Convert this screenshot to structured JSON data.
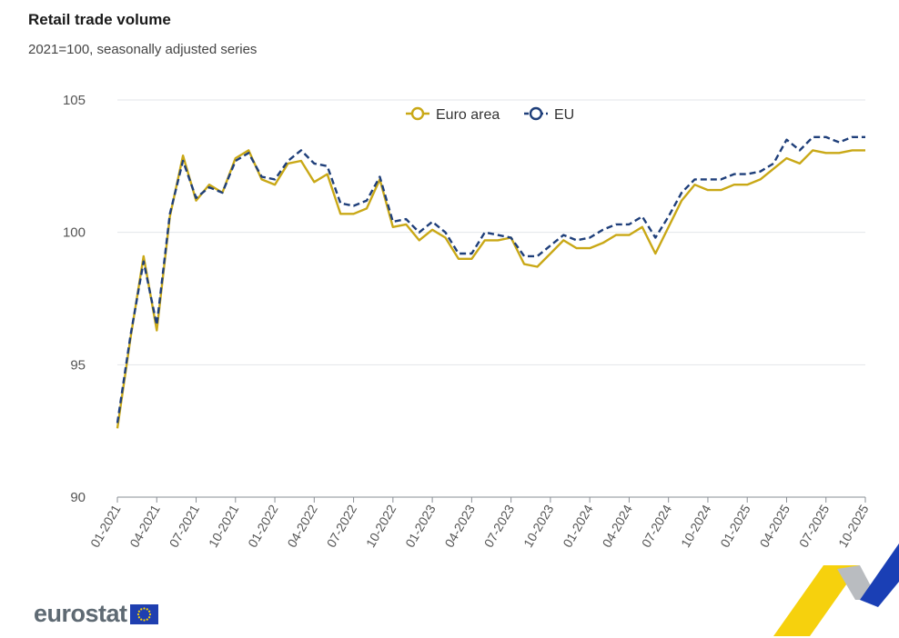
{
  "header": {
    "title": "Retail trade volume",
    "subtitle": "2021=100, seasonally adjusted series"
  },
  "branding": {
    "logo_text": "eurostat"
  },
  "chart_data": {
    "type": "line",
    "title": "Retail trade volume",
    "subtitle": "2021=100, seasonally adjusted series",
    "ylim": [
      90,
      105
    ],
    "yticks": [
      90,
      95,
      100,
      105
    ],
    "grid": true,
    "legend_position": "top-center",
    "x": [
      "01-2021",
      "02-2021",
      "03-2021",
      "04-2021",
      "05-2021",
      "06-2021",
      "07-2021",
      "08-2021",
      "09-2021",
      "10-2021",
      "11-2021",
      "12-2021",
      "01-2022",
      "02-2022",
      "03-2022",
      "04-2022",
      "05-2022",
      "06-2022",
      "07-2022",
      "08-2022",
      "09-2022",
      "10-2022",
      "11-2022",
      "12-2022",
      "01-2023",
      "02-2023",
      "03-2023",
      "04-2023",
      "05-2023",
      "06-2023",
      "07-2023",
      "08-2023",
      "09-2023",
      "10-2023",
      "11-2023",
      "12-2023",
      "01-2024",
      "02-2024",
      "03-2024",
      "04-2024",
      "05-2024",
      "06-2024",
      "07-2024",
      "08-2024",
      "09-2024",
      "10-2024",
      "11-2024",
      "12-2024",
      "01-2025",
      "02-2025",
      "03-2025",
      "04-2025",
      "05-2025",
      "06-2025",
      "07-2025",
      "08-2025",
      "09-2025",
      "10-2025"
    ],
    "xtick_labels": [
      "01-2021",
      "04-2021",
      "07-2021",
      "10-2021",
      "01-2022",
      "04-2022",
      "07-2022",
      "10-2022",
      "01-2023",
      "04-2023",
      "07-2023",
      "10-2023",
      "01-2024",
      "04-2024",
      "07-2024",
      "10-2024",
      "01-2025",
      "04-2025",
      "07-2025",
      "10-2025"
    ],
    "series": [
      {
        "name": "Euro area",
        "color": "#c9a816",
        "style": "solid",
        "values": [
          92.6,
          96.0,
          99.1,
          96.3,
          100.6,
          102.9,
          101.2,
          101.8,
          101.5,
          102.8,
          103.1,
          102.0,
          101.8,
          102.6,
          102.7,
          101.9,
          102.2,
          100.7,
          100.7,
          100.9,
          102.0,
          100.2,
          100.3,
          99.7,
          100.1,
          99.8,
          99.0,
          99.0,
          99.7,
          99.7,
          99.8,
          98.8,
          98.7,
          99.2,
          99.7,
          99.4,
          99.4,
          99.6,
          99.9,
          99.9,
          100.2,
          99.2,
          100.2,
          101.2,
          101.8,
          101.6,
          101.6,
          101.8,
          101.8,
          102.0,
          102.4,
          102.8,
          102.6,
          103.1,
          103.0,
          103.0,
          103.1,
          103.1
        ]
      },
      {
        "name": "EU",
        "color": "#1f3f7a",
        "style": "dashed",
        "values": [
          92.8,
          96.1,
          98.9,
          96.5,
          100.7,
          102.7,
          101.3,
          101.7,
          101.5,
          102.7,
          103.0,
          102.1,
          102.0,
          102.7,
          103.1,
          102.6,
          102.5,
          101.1,
          101.0,
          101.2,
          102.1,
          100.4,
          100.5,
          100.0,
          100.4,
          100.0,
          99.2,
          99.2,
          100.0,
          99.9,
          99.8,
          99.1,
          99.1,
          99.5,
          99.9,
          99.7,
          99.8,
          100.1,
          100.3,
          100.3,
          100.6,
          99.8,
          100.6,
          101.5,
          102.0,
          102.0,
          102.0,
          102.2,
          102.2,
          102.3,
          102.6,
          103.5,
          103.1,
          103.6,
          103.6,
          103.4,
          103.6,
          103.6
        ]
      }
    ]
  }
}
